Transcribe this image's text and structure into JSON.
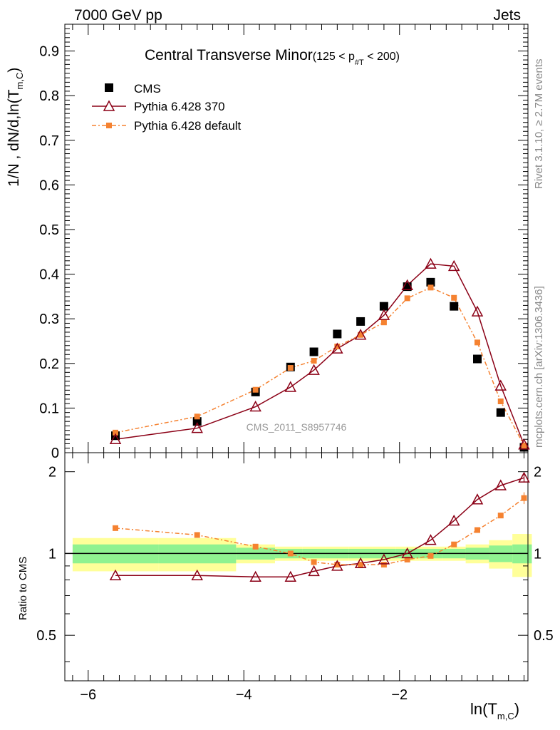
{
  "header": {
    "left": "7000 GeV pp",
    "right": "Jets"
  },
  "side_labels": {
    "rivet": "Rivet 3.1.10, ≥ 2.7M events",
    "mcplots": "mcplots.cern.ch [arXiv:1306.3436]"
  },
  "watermark": "CMS_2011_S8957746",
  "colors": {
    "cms": "#000000",
    "pythia370": "#8b0016",
    "pythia_default": "#f58231",
    "band_inner": "#90f290",
    "band_outer": "#ffff99"
  },
  "chart_data": [
    {
      "type": "scatter",
      "panel": "main",
      "title": "Central Transverse Minor",
      "title_suffix": "(125 < p",
      "title_sub": "#T",
      "title_end": " < 200)",
      "ylabel": "1/N , dN/d,ln(T",
      "ylabel_sub": "m,C",
      "ylabel_end": ")",
      "xlim": [
        -6.3,
        -0.35
      ],
      "ylim": [
        0,
        0.96
      ],
      "yticks": [
        "0",
        "0.1",
        "0.2",
        "0.3",
        "0.4",
        "0.5",
        "0.6",
        "0.7",
        "0.8",
        "0.9"
      ],
      "legend_placement": "top-left",
      "x": [
        -5.65,
        -4.6,
        -3.85,
        -3.4,
        -3.1,
        -2.8,
        -2.5,
        -2.2,
        -1.9,
        -1.6,
        -1.3,
        -1.0,
        -0.7,
        -0.4
      ],
      "series": [
        {
          "name": "CMS",
          "marker": "square",
          "values": [
            0.038,
            0.07,
            0.136,
            0.192,
            0.226,
            0.266,
            0.294,
            0.328,
            0.372,
            0.382,
            0.328,
            0.21,
            0.09,
            0.012
          ]
        },
        {
          "name": "Pythia 6.428 370",
          "marker": "triangle",
          "values": [
            0.03,
            0.055,
            0.103,
            0.147,
            0.185,
            0.233,
            0.264,
            0.308,
            0.375,
            0.423,
            0.418,
            0.316,
            0.15,
            0.018
          ]
        },
        {
          "name": "Pythia 6.428 default",
          "marker": "small-square",
          "values": [
            0.045,
            0.081,
            0.141,
            0.19,
            0.206,
            0.238,
            0.264,
            0.292,
            0.346,
            0.37,
            0.347,
            0.247,
            0.115,
            0.016
          ]
        }
      ]
    },
    {
      "type": "line",
      "panel": "ratio",
      "ylabel": "Ratio to CMS",
      "xlabel": "ln(T",
      "xlabel_sub": "m,C",
      "xlabel_end": ")",
      "xlim": [
        -6.3,
        -0.35
      ],
      "ylim": [
        0.34,
        2.35
      ],
      "yticks": [
        "0.5",
        "1",
        "2"
      ],
      "xticks": [
        "−6",
        "−4",
        "−2"
      ],
      "x": [
        -5.65,
        -4.6,
        -3.85,
        -3.4,
        -3.1,
        -2.8,
        -2.5,
        -2.2,
        -1.9,
        -1.6,
        -1.3,
        -1.0,
        -0.7,
        -0.4
      ],
      "band_edges": [
        -6.2,
        -5.1,
        -4.1,
        -3.6,
        -3.25,
        -2.95,
        -2.65,
        -2.35,
        -2.05,
        -1.75,
        -1.45,
        -1.15,
        -0.85,
        -0.55,
        -0.3
      ],
      "band_inner": [
        0.08,
        0.08,
        0.05,
        0.04,
        0.04,
        0.04,
        0.04,
        0.04,
        0.04,
        0.04,
        0.04,
        0.05,
        0.07,
        0.08
      ],
      "band_outer": [
        0.14,
        0.14,
        0.08,
        0.06,
        0.06,
        0.06,
        0.06,
        0.06,
        0.06,
        0.06,
        0.06,
        0.08,
        0.12,
        0.18
      ],
      "series": [
        {
          "name": "Pythia 6.428 370",
          "values": [
            0.83,
            0.83,
            0.82,
            0.82,
            0.86,
            0.9,
            0.92,
            0.95,
            1.0,
            1.12,
            1.32,
            1.58,
            1.78,
            1.9
          ]
        },
        {
          "name": "Pythia 6.428 default",
          "values": [
            1.24,
            1.17,
            1.06,
            1.0,
            0.93,
            0.91,
            0.91,
            0.91,
            0.95,
            0.98,
            1.08,
            1.22,
            1.38,
            1.6
          ]
        }
      ]
    }
  ]
}
